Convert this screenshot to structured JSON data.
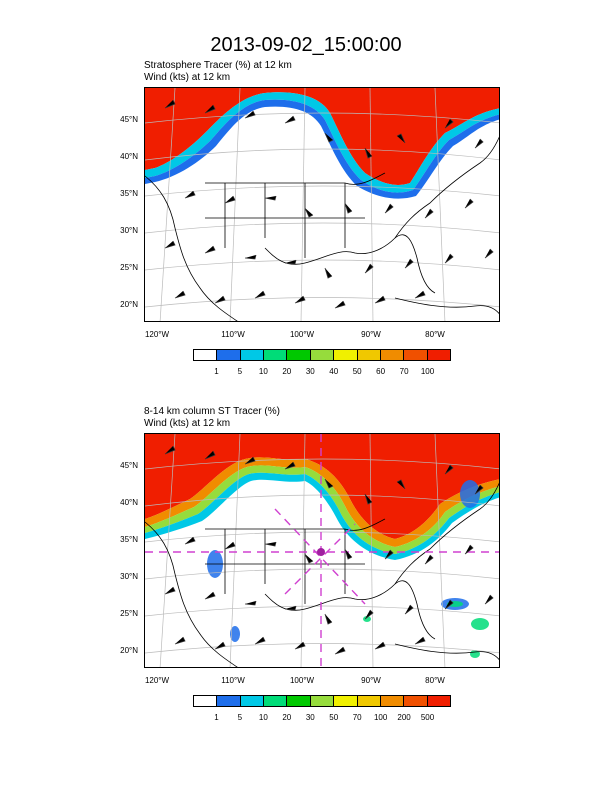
{
  "title": "2013-09-02_15:00:00",
  "panels": [
    {
      "subtitle_line1": "Stratosphere Tracer   (%)     at   12 km",
      "subtitle_line2": "Wind   (kts)     at   12 km",
      "lat_labels": [
        "45°N",
        "40°N",
        "35°N",
        "30°N",
        "25°N",
        "20°N"
      ],
      "lon_labels": [
        "120°W",
        "110°W",
        "100°W",
        "90°W",
        "80°W"
      ],
      "colorbar_labels": [
        "1",
        "5",
        "10",
        "20",
        "30",
        "40",
        "50",
        "60",
        "70",
        "100"
      ]
    },
    {
      "subtitle_line1": "8-14 km column ST Tracer   (%)",
      "subtitle_line2": "Wind   (kts)     at   12 km",
      "lat_labels": [
        "45°N",
        "40°N",
        "35°N",
        "30°N",
        "25°N",
        "20°N"
      ],
      "lon_labels": [
        "120°W",
        "110°W",
        "100°W",
        "90°W",
        "80°W"
      ],
      "colorbar_labels": [
        "1",
        "5",
        "10",
        "20",
        "30",
        "50",
        "70",
        "100",
        "200",
        "500"
      ]
    }
  ],
  "colorbar_colors": [
    "#ffffff",
    "#1e6eeb",
    "#00c8e6",
    "#00dc78",
    "#00c800",
    "#96dc3c",
    "#f0f000",
    "#f0c800",
    "#f08c00",
    "#f05000",
    "#f01e00"
  ]
}
